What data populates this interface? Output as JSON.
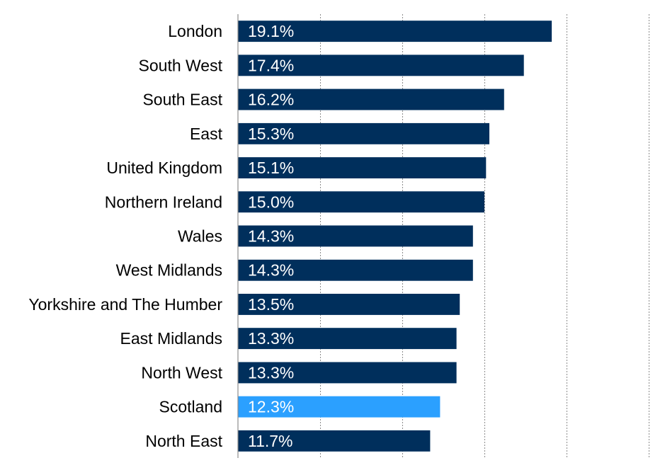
{
  "chart_data": {
    "type": "bar",
    "orientation": "horizontal",
    "categories": [
      "London",
      "South West",
      "South East",
      "East",
      "United Kingdom",
      "Northern Ireland",
      "Wales",
      "West Midlands",
      "Yorkshire and The Humber",
      "East Midlands",
      "North West",
      "Scotland",
      "North East"
    ],
    "values": [
      19.1,
      17.4,
      16.2,
      15.3,
      15.1,
      15.0,
      14.3,
      14.3,
      13.5,
      13.3,
      13.3,
      12.3,
      11.7
    ],
    "value_labels": [
      "19.1%",
      "17.4%",
      "16.2%",
      "15.3%",
      "15.1%",
      "15.0%",
      "14.3%",
      "14.3%",
      "13.5%",
      "13.3%",
      "13.3%",
      "12.3%",
      "11.7%"
    ],
    "highlight_category": "Scotland",
    "xlim": [
      0,
      25
    ],
    "grid": true,
    "tick_labels_shown": false,
    "title": "",
    "xlabel": "",
    "ylabel": "",
    "colors": {
      "bar": "#002f5c",
      "highlight": "#2ba0ff"
    }
  }
}
